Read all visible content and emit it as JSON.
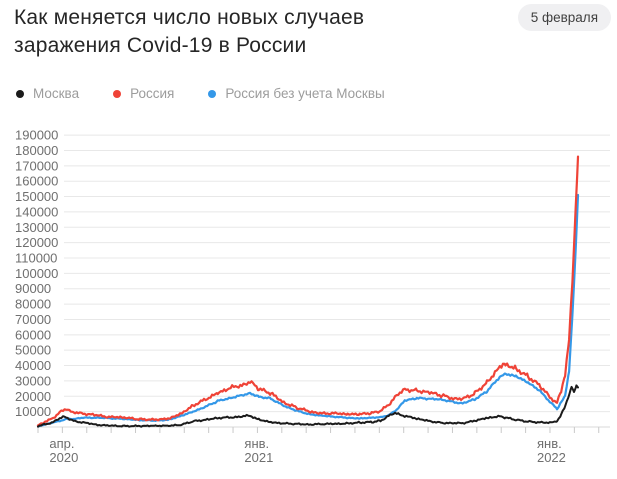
{
  "page": {
    "title": "Как меняется число новых случаев заражения Covid-19 в России",
    "date_badge": "5 февраля"
  },
  "legend": {
    "items": [
      {
        "label": "Москва",
        "color": "#1b1b1b"
      },
      {
        "label": "Россия",
        "color": "#ef4337"
      },
      {
        "label": "Россия без учета Москвы",
        "color": "#3498e8"
      }
    ]
  },
  "colors": {
    "grid": "#e8e8e8",
    "baseline": "#d9d9d9",
    "tick": "#c9c9c9",
    "axis_text": "#6f6f6f",
    "legend_text": "#9c9c9c",
    "badge_bg": "#f0f0f2",
    "title_text": "#262626"
  },
  "chart_data": {
    "type": "line",
    "title": "Как меняется число новых случаев заражения Covid-19 в России",
    "as_of": "5 февраля",
    "grid": true,
    "legend_position": "top",
    "x_unit": "days since chart start (early April 2020); day 670 = 5 февраля 2022",
    "y_axis": {
      "min": 0,
      "max": 190000,
      "step": 10000,
      "tick_labels": [
        "10000",
        "20000",
        "30000",
        "40000",
        "50000",
        "60000",
        "70000",
        "80000",
        "90000",
        "100000",
        "110000",
        "120000",
        "130000",
        "140000",
        "150000",
        "160000",
        "170000",
        "180000",
        "190000"
      ]
    },
    "x_axis": {
      "tick_count": 24,
      "tick_labels": [
        {
          "tick_index": 1,
          "line1": "апр.",
          "line2": "2020"
        },
        {
          "tick_index": 9,
          "line1": "янв.",
          "line2": "2021"
        },
        {
          "tick_index": 21,
          "line1": "янв.",
          "line2": "2022"
        }
      ]
    },
    "series": [
      {
        "name": "Москва",
        "color": "#1b1b1b",
        "points": [
          [
            0,
            700
          ],
          [
            9,
            1800
          ],
          [
            19,
            3100
          ],
          [
            27,
            5600
          ],
          [
            31,
            6700
          ],
          [
            35,
            6400
          ],
          [
            44,
            4100
          ],
          [
            56,
            2900
          ],
          [
            70,
            1700
          ],
          [
            86,
            900
          ],
          [
            105,
            680
          ],
          [
            126,
            690
          ],
          [
            147,
            700
          ],
          [
            162,
            750
          ],
          [
            177,
            1300
          ],
          [
            192,
            3600
          ],
          [
            208,
            4800
          ],
          [
            223,
            5700
          ],
          [
            239,
            6300
          ],
          [
            253,
            6800
          ],
          [
            263,
            7300
          ],
          [
            274,
            4900
          ],
          [
            289,
            3200
          ],
          [
            305,
            2300
          ],
          [
            320,
            1900
          ],
          [
            338,
            1700
          ],
          [
            353,
            1800
          ],
          [
            369,
            2100
          ],
          [
            384,
            2400
          ],
          [
            399,
            2900
          ],
          [
            414,
            3200
          ],
          [
            425,
            4100
          ],
          [
            435,
            7200
          ],
          [
            443,
            9000
          ],
          [
            455,
            7300
          ],
          [
            470,
            5300
          ],
          [
            486,
            3800
          ],
          [
            501,
            2800
          ],
          [
            517,
            2400
          ],
          [
            527,
            2600
          ],
          [
            542,
            4100
          ],
          [
            557,
            5900
          ],
          [
            573,
            6800
          ],
          [
            580,
            6100
          ],
          [
            593,
            4600
          ],
          [
            608,
            3500
          ],
          [
            623,
            3000
          ],
          [
            635,
            2900
          ],
          [
            644,
            3900
          ],
          [
            649,
            7700
          ],
          [
            654,
            13800
          ],
          [
            659,
            20700
          ],
          [
            662,
            25800
          ],
          [
            665,
            22600
          ],
          [
            668,
            28200
          ],
          [
            670,
            25700
          ]
        ]
      },
      {
        "name": "Россия",
        "color": "#ef4337",
        "points": [
          [
            0,
            1100
          ],
          [
            9,
            3400
          ],
          [
            19,
            6000
          ],
          [
            27,
            9600
          ],
          [
            35,
            11600
          ],
          [
            44,
            9300
          ],
          [
            56,
            8900
          ],
          [
            70,
            7800
          ],
          [
            86,
            6700
          ],
          [
            105,
            6100
          ],
          [
            126,
            5100
          ],
          [
            147,
            4900
          ],
          [
            162,
            5500
          ],
          [
            177,
            8500
          ],
          [
            192,
            13600
          ],
          [
            208,
            18000
          ],
          [
            223,
            22500
          ],
          [
            239,
            25300
          ],
          [
            253,
            27300
          ],
          [
            263,
            29400
          ],
          [
            274,
            24700
          ],
          [
            289,
            21700
          ],
          [
            305,
            16000
          ],
          [
            320,
            12800
          ],
          [
            338,
            9800
          ],
          [
            353,
            9100
          ],
          [
            369,
            8800
          ],
          [
            384,
            8300
          ],
          [
            399,
            8400
          ],
          [
            414,
            9200
          ],
          [
            425,
            10400
          ],
          [
            435,
            14700
          ],
          [
            445,
            20400
          ],
          [
            455,
            24400
          ],
          [
            470,
            24000
          ],
          [
            486,
            22300
          ],
          [
            501,
            20500
          ],
          [
            517,
            18500
          ],
          [
            527,
            18100
          ],
          [
            542,
            22000
          ],
          [
            557,
            29000
          ],
          [
            573,
            39500
          ],
          [
            580,
            40800
          ],
          [
            593,
            37800
          ],
          [
            608,
            32600
          ],
          [
            623,
            26600
          ],
          [
            635,
            19300
          ],
          [
            644,
            15600
          ],
          [
            649,
            23800
          ],
          [
            654,
            33900
          ],
          [
            659,
            57200
          ],
          [
            663,
            95000
          ],
          [
            667,
            141000
          ],
          [
            670,
            176000
          ]
        ]
      },
      {
        "name": "Россия без учета Москвы",
        "color": "#3498e8",
        "points": [
          [
            0,
            400
          ],
          [
            9,
            1600
          ],
          [
            19,
            2900
          ],
          [
            27,
            4000
          ],
          [
            35,
            5200
          ],
          [
            44,
            5200
          ],
          [
            56,
            6000
          ],
          [
            70,
            6100
          ],
          [
            86,
            5800
          ],
          [
            105,
            5400
          ],
          [
            126,
            4400
          ],
          [
            147,
            4200
          ],
          [
            162,
            4750
          ],
          [
            177,
            7200
          ],
          [
            192,
            10000
          ],
          [
            208,
            13200
          ],
          [
            223,
            16800
          ],
          [
            239,
            19000
          ],
          [
            253,
            20500
          ],
          [
            263,
            22100
          ],
          [
            274,
            19800
          ],
          [
            289,
            18500
          ],
          [
            305,
            13700
          ],
          [
            320,
            10900
          ],
          [
            338,
            8100
          ],
          [
            353,
            7300
          ],
          [
            369,
            6700
          ],
          [
            384,
            5900
          ],
          [
            399,
            5500
          ],
          [
            414,
            6000
          ],
          [
            425,
            6300
          ],
          [
            435,
            7500
          ],
          [
            445,
            11400
          ],
          [
            455,
            17100
          ],
          [
            470,
            18700
          ],
          [
            486,
            18500
          ],
          [
            501,
            17700
          ],
          [
            517,
            16100
          ],
          [
            527,
            15500
          ],
          [
            542,
            17900
          ],
          [
            557,
            23100
          ],
          [
            573,
            32700
          ],
          [
            580,
            34700
          ],
          [
            593,
            33200
          ],
          [
            608,
            29100
          ],
          [
            623,
            23600
          ],
          [
            635,
            16400
          ],
          [
            644,
            11700
          ],
          [
            649,
            16100
          ],
          [
            654,
            20100
          ],
          [
            659,
            36500
          ],
          [
            663,
            72000
          ],
          [
            667,
            114000
          ],
          [
            670,
            151000
          ]
        ]
      }
    ]
  }
}
